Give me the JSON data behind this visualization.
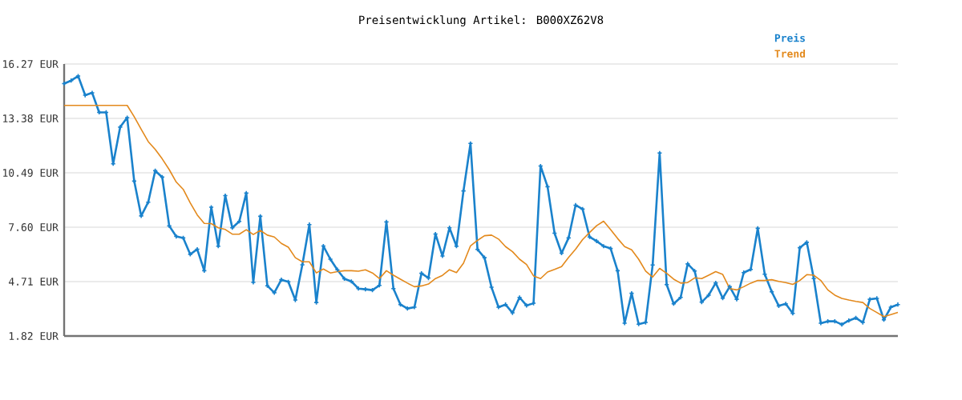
{
  "chart_data": {
    "type": "line",
    "title": "Preisentwicklung Artikel: B000XZ62V8",
    "categories": [
      null,
      null,
      null,
      null,
      null,
      null,
      null,
      null,
      null,
      null,
      null,
      null,
      null,
      null,
      null,
      null,
      null,
      null,
      null,
      null,
      null,
      null,
      null,
      null,
      null,
      null,
      null,
      null,
      null,
      null,
      null,
      null,
      null,
      null,
      null,
      null,
      null,
      null,
      null,
      null,
      null,
      null,
      null,
      null,
      null,
      null,
      null,
      null,
      null,
      null,
      null,
      null,
      null,
      null,
      null,
      null,
      null,
      null,
      null,
      null,
      null,
      null,
      null,
      null,
      null,
      null,
      null,
      null,
      null,
      null,
      null,
      null,
      null,
      null,
      null,
      null,
      null,
      null,
      null,
      null,
      null,
      null,
      null,
      null,
      null,
      null,
      null,
      null,
      null,
      null,
      null,
      null,
      null,
      null,
      null,
      null,
      null,
      null,
      null,
      null,
      null,
      null,
      null,
      null,
      null,
      null,
      null,
      null,
      null,
      null,
      null,
      null,
      null,
      null,
      null,
      null,
      null,
      null,
      null,
      null
    ],
    "series": [
      {
        "name": "Preis",
        "color": "#1a82cc",
        "marker": "cross",
        "values": [
          15.23,
          15.39,
          15.63,
          14.61,
          14.74,
          13.7,
          13.7,
          10.97,
          12.92,
          13.42,
          10.05,
          8.2,
          8.93,
          10.6,
          10.26,
          7.67,
          7.11,
          7.03,
          6.16,
          6.43,
          5.29,
          8.66,
          6.59,
          9.28,
          7.57,
          7.91,
          9.41,
          4.67,
          8.18,
          4.49,
          4.12,
          4.81,
          4.7,
          3.73,
          5.6,
          7.74,
          3.6,
          6.6,
          5.9,
          5.34,
          4.86,
          4.72,
          4.34,
          4.3,
          4.26,
          4.51,
          7.88,
          4.34,
          3.49,
          3.28,
          3.35,
          5.15,
          4.9,
          7.24,
          6.07,
          7.57,
          6.59,
          9.53,
          12.05,
          6.42,
          5.98,
          4.41,
          3.35,
          3.49,
          3.05,
          3.87,
          3.44,
          3.56,
          10.85,
          9.75,
          7.28,
          6.22,
          7.03,
          8.77,
          8.56,
          7.08,
          6.86,
          6.59,
          6.47,
          5.29,
          2.5,
          4.09,
          2.45,
          2.54,
          5.59,
          11.54,
          4.55,
          3.53,
          3.87,
          5.65,
          5.27,
          3.62,
          3.99,
          4.64,
          3.83,
          4.44,
          3.77,
          5.19,
          5.36,
          7.54,
          5.1,
          4.17,
          3.42,
          3.53,
          3.02,
          6.51,
          6.8,
          4.87,
          2.5,
          2.6,
          2.6,
          2.43,
          2.64,
          2.78,
          2.54,
          3.77,
          3.82,
          2.68,
          3.35,
          3.49
        ]
      },
      {
        "name": "Trend",
        "color": "#e3891c",
        "marker": "none",
        "values": [
          14.07,
          14.07,
          14.07,
          14.07,
          14.07,
          14.07,
          14.07,
          14.07,
          14.07,
          14.07,
          13.47,
          12.8,
          12.15,
          11.73,
          11.23,
          10.66,
          10.0,
          9.61,
          8.89,
          8.25,
          7.8,
          7.79,
          7.57,
          7.48,
          7.23,
          7.23,
          7.47,
          7.21,
          7.43,
          7.18,
          7.08,
          6.74,
          6.54,
          5.98,
          5.76,
          5.76,
          5.17,
          5.38,
          5.17,
          5.24,
          5.29,
          5.29,
          5.26,
          5.34,
          5.17,
          4.87,
          5.29,
          5.05,
          4.84,
          4.63,
          4.44,
          4.48,
          4.58,
          4.87,
          5.04,
          5.34,
          5.19,
          5.69,
          6.61,
          6.9,
          7.15,
          7.18,
          6.97,
          6.57,
          6.3,
          5.9,
          5.62,
          5.01,
          4.87,
          5.22,
          5.36,
          5.51,
          6.0,
          6.43,
          6.94,
          7.32,
          7.68,
          7.92,
          7.47,
          7.0,
          6.57,
          6.4,
          5.9,
          5.27,
          4.95,
          5.41,
          5.15,
          4.84,
          4.63,
          4.66,
          4.91,
          4.87,
          5.05,
          5.24,
          5.09,
          4.34,
          4.27,
          4.44,
          4.63,
          4.77,
          4.77,
          4.81,
          4.72,
          4.66,
          4.56,
          4.77,
          5.08,
          5.05,
          4.77,
          4.27,
          3.99,
          3.82,
          3.73,
          3.66,
          3.6,
          3.28,
          3.07,
          2.85,
          2.96,
          3.07
        ]
      }
    ],
    "ylim": [
      1.82,
      16.27
    ],
    "yticks": [
      {
        "value": 1.82,
        "label": "1.82 EUR"
      },
      {
        "value": 4.71,
        "label": "4.71 EUR"
      },
      {
        "value": 7.6,
        "label": "7.60 EUR"
      },
      {
        "value": 10.49,
        "label": "10.49 EUR"
      },
      {
        "value": 13.38,
        "label": "13.38 EUR"
      },
      {
        "value": 16.27,
        "label": "16.27 EUR"
      }
    ],
    "grid": "y",
    "legend": "top right",
    "tick_labels": "y"
  }
}
